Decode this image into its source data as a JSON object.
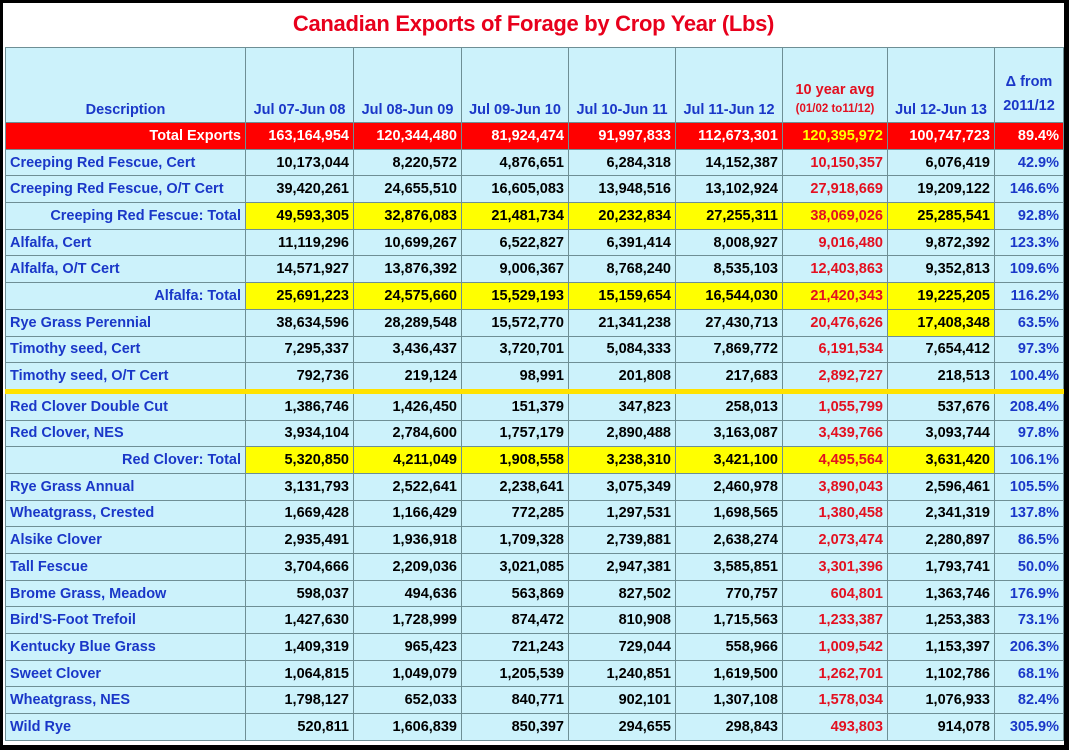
{
  "title": "Canadian Exports of Forage by Crop Year  (Lbs)",
  "chart_data": {
    "type": "table",
    "title": "Canadian Exports of Forage by Crop Year  (Lbs)",
    "columns": [
      {
        "label": "Description"
      },
      {
        "label": "Jul 07-Jun 08"
      },
      {
        "label": "Jul 08-Jun 09"
      },
      {
        "label": "Jul 09-Jun 10"
      },
      {
        "label": "Jul 10-Jun 11"
      },
      {
        "label": "Jul 11-Jun 12"
      },
      {
        "label": "10 year avg",
        "sub": "(01/02 to11/12)"
      },
      {
        "label": "Jul 12-Jun 13"
      },
      {
        "label": "Δ from",
        "sub": "2011/12"
      }
    ],
    "rows": [
      {
        "kind": "total",
        "cells": [
          "Total Exports",
          "163,164,954",
          "120,344,480",
          "81,924,474",
          "91,997,833",
          "112,673,301",
          "120,395,972",
          "100,747,723",
          "89.4%"
        ]
      },
      {
        "kind": "row",
        "cells": [
          "Creeping Red Fescue, Cert",
          "10,173,044",
          "8,220,572",
          "4,876,651",
          "6,284,318",
          "14,152,387",
          "10,150,357",
          "6,076,419",
          "42.9%"
        ]
      },
      {
        "kind": "row",
        "cells": [
          "Creeping Red Fescue, O/T Cert",
          "39,420,261",
          "24,655,510",
          "16,605,083",
          "13,948,516",
          "13,102,924",
          "27,918,669",
          "19,209,122",
          "146.6%"
        ]
      },
      {
        "kind": "sub",
        "cells": [
          "Creeping Red Fescue: Total",
          "49,593,305",
          "32,876,083",
          "21,481,734",
          "20,232,834",
          "27,255,311",
          "38,069,026",
          "25,285,541",
          "92.8%"
        ]
      },
      {
        "kind": "row",
        "cells": [
          "Alfalfa, Cert",
          "11,119,296",
          "10,699,267",
          "6,522,827",
          "6,391,414",
          "8,008,927",
          "9,016,480",
          "9,872,392",
          "123.3%"
        ]
      },
      {
        "kind": "row",
        "cells": [
          "Alfalfa, O/T Cert",
          "14,571,927",
          "13,876,392",
          "9,006,367",
          "8,768,240",
          "8,535,103",
          "12,403,863",
          "9,352,813",
          "109.6%"
        ]
      },
      {
        "kind": "sub",
        "cells": [
          "Alfalfa: Total",
          "25,691,223",
          "24,575,660",
          "15,529,193",
          "15,159,654",
          "16,544,030",
          "21,420,343",
          "19,225,205",
          "116.2%"
        ]
      },
      {
        "kind": "row",
        "hl7": true,
        "cells": [
          "Rye Grass  Perennial",
          "38,634,596",
          "28,289,548",
          "15,572,770",
          "21,341,238",
          "27,430,713",
          "20,476,626",
          "17,408,348",
          "63.5%"
        ]
      },
      {
        "kind": "row",
        "cells": [
          "Timothy seed, Cert",
          "7,295,337",
          "3,436,437",
          "3,720,701",
          "5,084,333",
          "7,869,772",
          "6,191,534",
          "7,654,412",
          "97.3%"
        ]
      },
      {
        "kind": "row",
        "cells": [
          "Timothy seed, O/T Cert",
          "792,736",
          "219,124",
          "98,991",
          "201,808",
          "217,683",
          "2,892,727",
          "218,513",
          "100.4%"
        ]
      },
      {
        "kind": "row",
        "gap": true,
        "cells": [
          "Red Clover  Double Cut",
          "1,386,746",
          "1,426,450",
          "151,379",
          "347,823",
          "258,013",
          "1,055,799",
          "537,676",
          "208.4%"
        ]
      },
      {
        "kind": "row",
        "cells": [
          "Red Clover, NES",
          "3,934,104",
          "2,784,600",
          "1,757,179",
          "2,890,488",
          "3,163,087",
          "3,439,766",
          "3,093,744",
          "97.8%"
        ]
      },
      {
        "kind": "sub",
        "cells": [
          "Red Clover: Total",
          "5,320,850",
          "4,211,049",
          "1,908,558",
          "3,238,310",
          "3,421,100",
          "4,495,564",
          "3,631,420",
          "106.1%"
        ]
      },
      {
        "kind": "row",
        "cells": [
          "Rye Grass  Annual",
          "3,131,793",
          "2,522,641",
          "2,238,641",
          "3,075,349",
          "2,460,978",
          "3,890,043",
          "2,596,461",
          "105.5%"
        ]
      },
      {
        "kind": "row",
        "cells": [
          "Wheatgrass, Crested",
          "1,669,428",
          "1,166,429",
          "772,285",
          "1,297,531",
          "1,698,565",
          "1,380,458",
          "2,341,319",
          "137.8%"
        ]
      },
      {
        "kind": "row",
        "cells": [
          "Alsike Clover",
          "2,935,491",
          "1,936,918",
          "1,709,328",
          "2,739,881",
          "2,638,274",
          "2,073,474",
          "2,280,897",
          "86.5%"
        ]
      },
      {
        "kind": "row",
        "cells": [
          "Tall Fescue",
          "3,704,666",
          "2,209,036",
          "3,021,085",
          "2,947,381",
          "3,585,851",
          "3,301,396",
          "1,793,741",
          "50.0%"
        ]
      },
      {
        "kind": "row",
        "cells": [
          "Brome Grass, Meadow",
          "598,037",
          "494,636",
          "563,869",
          "827,502",
          "770,757",
          "604,801",
          "1,363,746",
          "176.9%"
        ]
      },
      {
        "kind": "row",
        "cells": [
          "Bird'S-Foot Trefoil",
          "1,427,630",
          "1,728,999",
          "874,472",
          "810,908",
          "1,715,563",
          "1,233,387",
          "1,253,383",
          "73.1%"
        ]
      },
      {
        "kind": "row",
        "cells": [
          "Kentucky Blue Grass",
          "1,409,319",
          "965,423",
          "721,243",
          "729,044",
          "558,966",
          "1,009,542",
          "1,153,397",
          "206.3%"
        ]
      },
      {
        "kind": "row",
        "cells": [
          "Sweet Clover",
          "1,064,815",
          "1,049,079",
          "1,205,539",
          "1,240,851",
          "1,619,500",
          "1,262,701",
          "1,102,786",
          "68.1%"
        ]
      },
      {
        "kind": "row",
        "cells": [
          "Wheatgrass, NES",
          "1,798,127",
          "652,033",
          "840,771",
          "902,101",
          "1,307,108",
          "1,578,034",
          "1,076,933",
          "82.4%"
        ]
      },
      {
        "kind": "row",
        "cells": [
          "Wild Rye",
          "520,811",
          "1,606,839",
          "850,397",
          "294,655",
          "298,843",
          "493,803",
          "914,078",
          "305.9%"
        ]
      }
    ]
  }
}
